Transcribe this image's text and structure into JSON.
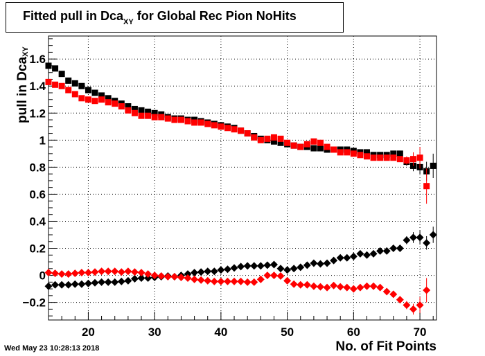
{
  "header": {
    "title_main": "Fitted pull in Dca",
    "title_sub": "XY",
    "title_rest": " for Global Rec Pion NoHits"
  },
  "footer": {
    "timestamp": "Wed May 23 10:28:13 2018"
  },
  "chart_data": {
    "type": "scatter",
    "title": "Fitted pull in Dca_XY for Global Rec Pion NoHits",
    "xlabel": "No. of Fit Points",
    "ylabel_main": "pull in Dca",
    "ylabel_sub": "XY",
    "xlim": [
      14,
      72.5
    ],
    "ylim": [
      -0.33,
      1.77
    ],
    "grid": true,
    "x_ticks": [
      20,
      30,
      40,
      50,
      60,
      70
    ],
    "y_ticks": [
      -0.2,
      0,
      0.2,
      0.4,
      0.6,
      0.8,
      1,
      1.2,
      1.4,
      1.6
    ],
    "colors": {
      "black_series": "#000000",
      "red_series": "#ff0000"
    },
    "series": [
      {
        "marker": "square",
        "color": "#000000",
        "x": [
          14,
          15,
          16,
          17,
          18,
          19,
          20,
          21,
          22,
          23,
          24,
          25,
          26,
          27,
          28,
          29,
          30,
          31,
          32,
          33,
          34,
          35,
          36,
          37,
          38,
          39,
          40,
          41,
          42,
          43,
          44,
          45,
          46,
          47,
          48,
          49,
          50,
          51,
          52,
          53,
          54,
          55,
          56,
          57,
          58,
          59,
          60,
          61,
          62,
          63,
          64,
          65,
          66,
          67,
          68,
          69,
          70,
          71,
          72
        ],
        "y": [
          1.55,
          1.53,
          1.49,
          1.44,
          1.42,
          1.4,
          1.37,
          1.35,
          1.33,
          1.31,
          1.29,
          1.27,
          1.25,
          1.23,
          1.22,
          1.21,
          1.2,
          1.19,
          1.17,
          1.16,
          1.16,
          1.15,
          1.15,
          1.14,
          1.13,
          1.12,
          1.11,
          1.1,
          1.09,
          1.07,
          1.05,
          1.03,
          1.01,
          1.0,
          0.99,
          0.98,
          0.97,
          0.96,
          0.95,
          0.95,
          0.94,
          0.94,
          0.93,
          0.93,
          0.93,
          0.93,
          0.92,
          0.91,
          0.91,
          0.89,
          0.89,
          0.89,
          0.9,
          0.9,
          0.84,
          0.81,
          0.8,
          0.77,
          0.81
        ],
        "err": [
          0,
          0,
          0,
          0,
          0,
          0,
          0,
          0,
          0,
          0,
          0,
          0,
          0,
          0,
          0,
          0,
          0,
          0,
          0,
          0,
          0,
          0,
          0,
          0,
          0,
          0,
          0,
          0,
          0,
          0,
          0,
          0,
          0,
          0,
          0,
          0,
          0,
          0,
          0,
          0,
          0,
          0,
          0,
          0,
          0,
          0,
          0,
          0,
          0,
          0,
          0,
          0,
          0,
          0,
          0.03,
          0.04,
          0.05,
          0.07,
          0.09
        ]
      },
      {
        "marker": "square",
        "color": "#ff0000",
        "x": [
          14,
          15,
          16,
          17,
          18,
          19,
          20,
          21,
          22,
          23,
          24,
          25,
          26,
          27,
          28,
          29,
          30,
          31,
          32,
          33,
          34,
          35,
          36,
          37,
          38,
          39,
          40,
          41,
          42,
          43,
          44,
          45,
          46,
          47,
          48,
          49,
          50,
          51,
          52,
          53,
          54,
          55,
          56,
          57,
          58,
          59,
          60,
          61,
          62,
          63,
          64,
          65,
          66,
          67,
          68,
          69,
          70,
          71
        ],
        "y": [
          1.43,
          1.41,
          1.4,
          1.37,
          1.34,
          1.31,
          1.3,
          1.29,
          1.3,
          1.28,
          1.27,
          1.25,
          1.22,
          1.2,
          1.18,
          1.18,
          1.17,
          1.17,
          1.16,
          1.15,
          1.15,
          1.14,
          1.13,
          1.13,
          1.12,
          1.11,
          1.1,
          1.09,
          1.08,
          1.07,
          1.05,
          1.02,
          1.0,
          1.01,
          1.02,
          1.01,
          0.98,
          0.96,
          0.95,
          0.97,
          0.99,
          0.98,
          0.95,
          0.93,
          0.91,
          0.91,
          0.9,
          0.89,
          0.88,
          0.87,
          0.87,
          0.87,
          0.87,
          0.86,
          0.85,
          0.86,
          0.87,
          0.66
        ],
        "err": [
          0,
          0,
          0,
          0,
          0,
          0,
          0,
          0,
          0,
          0,
          0,
          0,
          0,
          0,
          0,
          0,
          0,
          0,
          0,
          0,
          0,
          0,
          0,
          0,
          0,
          0,
          0,
          0,
          0,
          0,
          0,
          0,
          0,
          0,
          0,
          0,
          0,
          0,
          0,
          0,
          0,
          0,
          0,
          0,
          0,
          0,
          0,
          0,
          0,
          0,
          0,
          0,
          0,
          0,
          0.03,
          0.05,
          0.08,
          0.13
        ]
      },
      {
        "marker": "diamond",
        "color": "#000000",
        "x": [
          14,
          15,
          16,
          17,
          18,
          19,
          20,
          21,
          22,
          23,
          24,
          25,
          26,
          27,
          28,
          29,
          30,
          31,
          32,
          33,
          34,
          35,
          36,
          37,
          38,
          39,
          40,
          41,
          42,
          43,
          44,
          45,
          46,
          47,
          48,
          49,
          50,
          51,
          52,
          53,
          54,
          55,
          56,
          57,
          58,
          59,
          60,
          61,
          62,
          63,
          64,
          65,
          66,
          67,
          68,
          69,
          70,
          71,
          72
        ],
        "y": [
          -0.08,
          -0.07,
          -0.07,
          -0.07,
          -0.065,
          -0.065,
          -0.06,
          -0.055,
          -0.05,
          -0.05,
          -0.05,
          -0.045,
          -0.04,
          -0.025,
          -0.02,
          -0.02,
          -0.015,
          -0.01,
          -0.005,
          -0.01,
          0,
          0.01,
          0.02,
          0.025,
          0.03,
          0.03,
          0.04,
          0.045,
          0.055,
          0.065,
          0.07,
          0.07,
          0.07,
          0.075,
          0.08,
          0.05,
          0.04,
          0.05,
          0.06,
          0.075,
          0.09,
          0.085,
          0.09,
          0.11,
          0.13,
          0.13,
          0.14,
          0.16,
          0.15,
          0.16,
          0.18,
          0.18,
          0.2,
          0.2,
          0.26,
          0.28,
          0.28,
          0.24,
          0.3
        ],
        "err": [
          0,
          0,
          0,
          0,
          0,
          0,
          0,
          0,
          0,
          0,
          0,
          0,
          0,
          0,
          0,
          0,
          0,
          0,
          0,
          0,
          0,
          0,
          0,
          0,
          0,
          0,
          0,
          0,
          0,
          0,
          0,
          0,
          0,
          0,
          0,
          0,
          0,
          0,
          0,
          0,
          0,
          0,
          0,
          0,
          0,
          0,
          0,
          0,
          0,
          0,
          0,
          0,
          0,
          0,
          0.03,
          0.04,
          0.05,
          0.05,
          0.06
        ]
      },
      {
        "marker": "diamond",
        "color": "#ff0000",
        "x": [
          14,
          15,
          16,
          17,
          18,
          19,
          20,
          21,
          22,
          23,
          24,
          25,
          26,
          27,
          28,
          29,
          30,
          31,
          32,
          33,
          34,
          35,
          36,
          37,
          38,
          39,
          40,
          41,
          42,
          43,
          44,
          45,
          46,
          47,
          48,
          49,
          50,
          51,
          52,
          53,
          54,
          55,
          56,
          57,
          58,
          59,
          60,
          61,
          62,
          63,
          64,
          65,
          66,
          67,
          68,
          69,
          70,
          71
        ],
        "y": [
          0.02,
          0.015,
          0.01,
          0.01,
          0.015,
          0.02,
          0.02,
          0.025,
          0.03,
          0.03,
          0.03,
          0.025,
          0.03,
          0.025,
          0.02,
          0.01,
          0,
          -0.005,
          -0.01,
          -0.01,
          -0.015,
          -0.02,
          -0.03,
          -0.035,
          -0.04,
          -0.045,
          -0.045,
          -0.045,
          -0.045,
          -0.045,
          -0.05,
          -0.05,
          -0.03,
          0,
          0,
          -0.005,
          -0.04,
          -0.065,
          -0.07,
          -0.07,
          -0.08,
          -0.085,
          -0.09,
          -0.075,
          -0.085,
          -0.09,
          -0.1,
          -0.09,
          -0.08,
          -0.08,
          -0.09,
          -0.12,
          -0.14,
          -0.18,
          -0.22,
          -0.25,
          -0.22,
          -0.11
        ],
        "err": [
          0,
          0,
          0,
          0,
          0,
          0,
          0,
          0,
          0,
          0,
          0,
          0,
          0,
          0,
          0,
          0,
          0,
          0,
          0,
          0,
          0,
          0,
          0,
          0,
          0,
          0,
          0,
          0,
          0,
          0,
          0,
          0,
          0,
          0,
          0,
          0,
          0,
          0,
          0,
          0,
          0,
          0,
          0,
          0,
          0,
          0,
          0,
          0,
          0,
          0,
          0,
          0,
          0,
          0,
          0.03,
          0.04,
          0.06,
          0.09
        ]
      }
    ]
  }
}
